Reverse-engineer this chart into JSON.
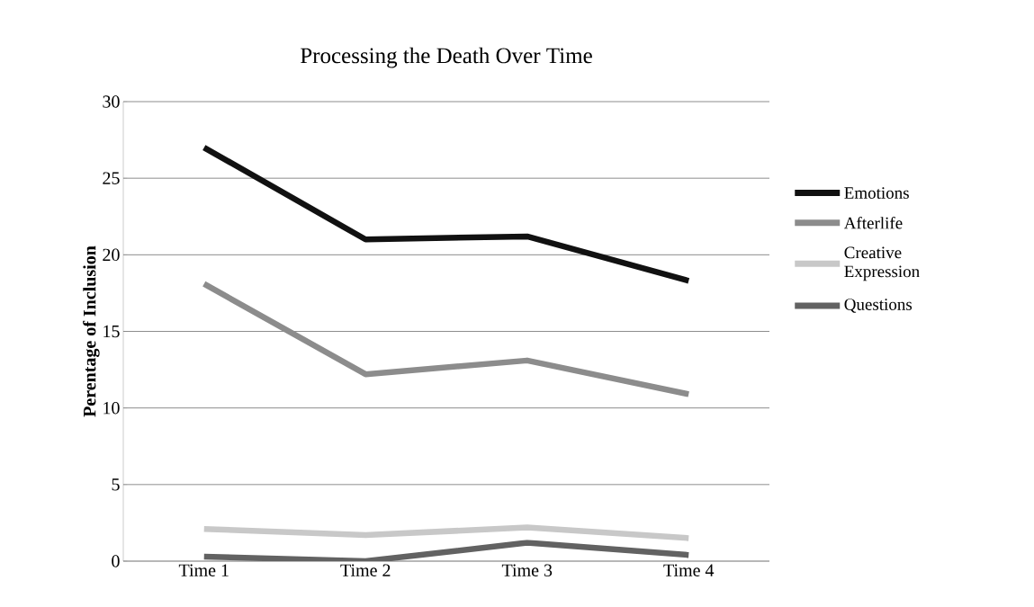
{
  "chart_data": {
    "type": "line",
    "title": "Processing the Death Over Time",
    "ylabel": "Perentage of Inclusion",
    "categories": [
      "Time 1",
      "Time 2",
      "Time 3",
      "Time 4"
    ],
    "series": [
      {
        "name": "Emotions",
        "color": "#111111",
        "values": [
          27.0,
          21.0,
          21.2,
          18.3
        ]
      },
      {
        "name": "Afterlife",
        "color": "#8c8c8c",
        "values": [
          18.1,
          12.2,
          13.1,
          10.9
        ]
      },
      {
        "name": "Creative Expression",
        "color": "#c8c8c8",
        "values": [
          2.1,
          1.7,
          2.2,
          1.5
        ]
      },
      {
        "name": "Questions",
        "color": "#626262",
        "values": [
          0.3,
          0.0,
          1.2,
          0.4
        ]
      }
    ],
    "ylim": [
      0,
      30
    ],
    "yticks": [
      0,
      5,
      10,
      15,
      20,
      25,
      30
    ],
    "grid": "y",
    "legend": "right"
  }
}
